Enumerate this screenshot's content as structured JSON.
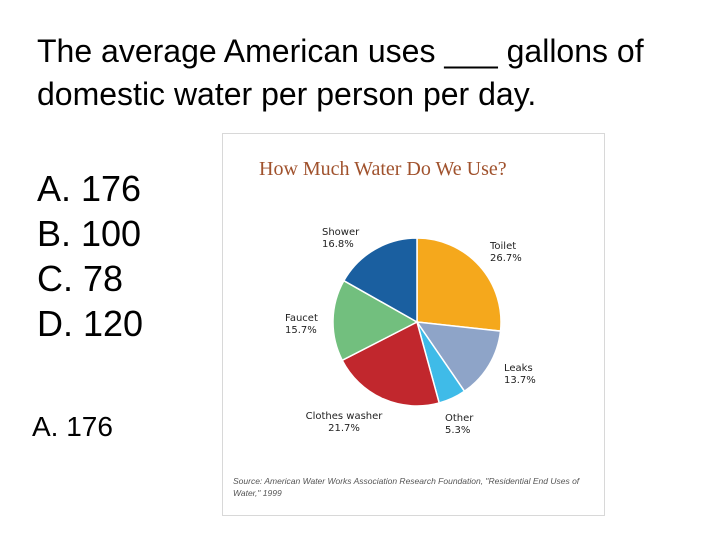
{
  "question": {
    "text_before": "The average American uses ",
    "blank": "___",
    "text_after": " gallons of domestic water per person per day."
  },
  "options": [
    "A. 176",
    "B. 100",
    "C. 78",
    "D. 120"
  ],
  "answer": "A. 176",
  "chart_data": {
    "type": "pie",
    "title": "How Much Water Do We Use?",
    "source": "Source: American Water Works Association Research Foundation, \"Residential End Uses of Water,\" 1999",
    "slices": [
      {
        "label": "Toilet",
        "value": 26.7,
        "display": "26.7%",
        "color": "#f5a81c"
      },
      {
        "label": "Leaks",
        "value": 13.7,
        "display": "13.7%",
        "color": "#8ea4c8"
      },
      {
        "label": "Other",
        "value": 5.3,
        "display": "5.3%",
        "color": "#3fbbe8"
      },
      {
        "label": "Clothes washer",
        "value": 21.7,
        "display": "21.7%",
        "color": "#c1272d"
      },
      {
        "label": "Faucet",
        "value": 15.7,
        "display": "15.7%",
        "color": "#72bf7e"
      },
      {
        "label": "Shower",
        "value": 16.8,
        "display": "16.8%",
        "color": "#1a5fa0"
      }
    ]
  }
}
